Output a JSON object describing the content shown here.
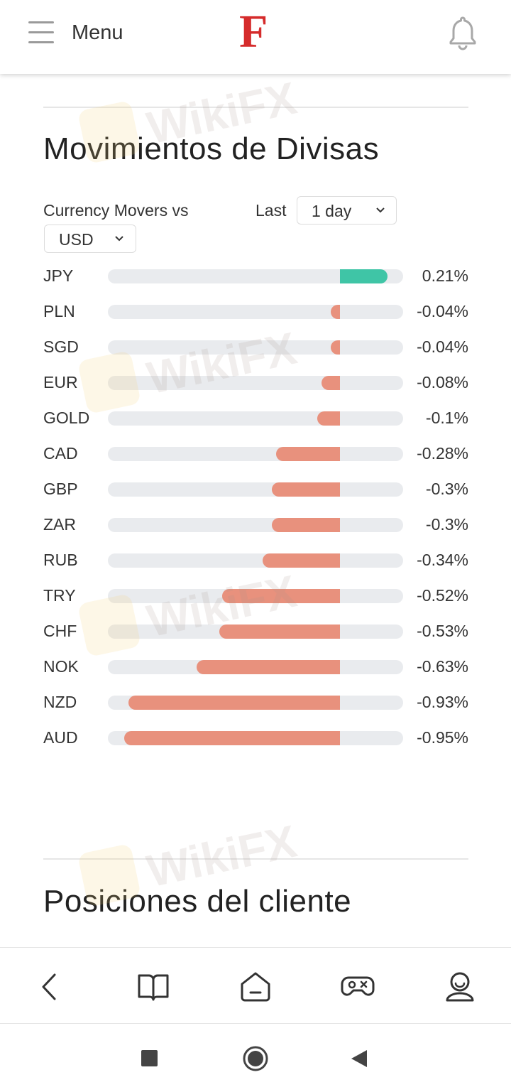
{
  "header": {
    "menu_label": "Menu",
    "logo_letter": "F",
    "logo_color": "#d52b2b"
  },
  "watermark": {
    "text": "WikiFX"
  },
  "currency_section": {
    "title": "Movimientos de Divisas",
    "movers_label": "Currency Movers vs",
    "base_currency": "USD",
    "last_label": "Last",
    "period": "1 day",
    "positive_color": "#3fc5a6",
    "negative_color": "#e8917d",
    "rows": [
      {
        "code": "JPY",
        "value": 0.21,
        "label": "0.21%"
      },
      {
        "code": "PLN",
        "value": -0.04,
        "label": "-0.04%"
      },
      {
        "code": "SGD",
        "value": -0.04,
        "label": "-0.04%"
      },
      {
        "code": "EUR",
        "value": -0.08,
        "label": "-0.08%"
      },
      {
        "code": "GOLD",
        "value": -0.1,
        "label": "-0.1%"
      },
      {
        "code": "CAD",
        "value": -0.28,
        "label": "-0.28%"
      },
      {
        "code": "GBP",
        "value": -0.3,
        "label": "-0.3%"
      },
      {
        "code": "ZAR",
        "value": -0.3,
        "label": "-0.3%"
      },
      {
        "code": "RUB",
        "value": -0.34,
        "label": "-0.34%"
      },
      {
        "code": "TRY",
        "value": -0.52,
        "label": "-0.52%"
      },
      {
        "code": "CHF",
        "value": -0.53,
        "label": "-0.53%"
      },
      {
        "code": "NOK",
        "value": -0.63,
        "label": "-0.63%"
      },
      {
        "code": "NZD",
        "value": -0.93,
        "label": "-0.93%"
      },
      {
        "code": "AUD",
        "value": -0.95,
        "label": "-0.95%"
      }
    ]
  },
  "client_section": {
    "title": "Posiciones del cliente"
  },
  "browser_bar": {
    "icons": [
      "back-icon",
      "bookmarks-book-icon",
      "home-icon",
      "games-controller-icon",
      "profile-icon"
    ]
  },
  "system_nav": {
    "icons": [
      "recent-apps-square-icon",
      "home-circle-icon",
      "back-triangle-icon"
    ]
  }
}
